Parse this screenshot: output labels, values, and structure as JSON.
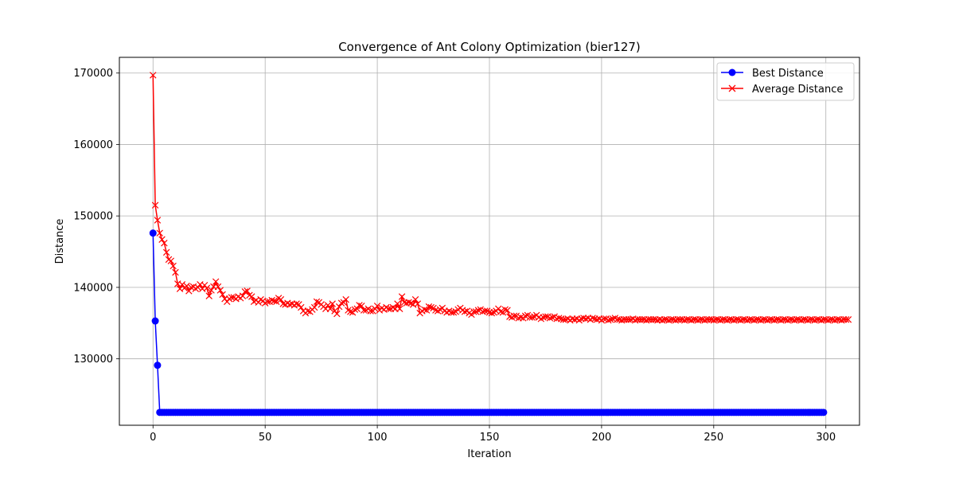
{
  "chart_data": {
    "type": "line",
    "title": "Convergence of Ant Colony Optimization (bier127)",
    "xlabel": "Iteration",
    "ylabel": "Distance",
    "xlim": [
      -15,
      315
    ],
    "ylim": [
      120700,
      172200
    ],
    "xticks": [
      0,
      50,
      100,
      150,
      200,
      250,
      300
    ],
    "yticks": [
      130000,
      140000,
      150000,
      160000,
      170000
    ],
    "grid": true,
    "legend": "top-right",
    "x": "iterations 0..299",
    "series": [
      {
        "name": "Best Distance",
        "color": "#0000ff",
        "marker": "circle",
        "values": [
          147600,
          135300,
          129100,
          122500,
          122500,
          122500,
          122500,
          122500,
          122500,
          122500,
          122500,
          122500,
          122500,
          122500,
          122500,
          122500,
          122500,
          122500,
          122500,
          122500,
          122500,
          122500,
          122500,
          122500,
          122500,
          122500,
          122500,
          122500,
          122500,
          122500,
          122500,
          122500,
          122500,
          122500,
          122500,
          122500,
          122500,
          122500,
          122500,
          122500,
          122500,
          122500,
          122500,
          122500,
          122500,
          122500,
          122500,
          122500,
          122500,
          122500,
          122500,
          122500,
          122500,
          122500,
          122500,
          122500,
          122500,
          122500,
          122500,
          122500,
          122500,
          122500,
          122500,
          122500,
          122500,
          122500,
          122500,
          122500,
          122500,
          122500,
          122500,
          122500,
          122500,
          122500,
          122500,
          122500,
          122500,
          122500,
          122500,
          122500,
          122500,
          122500,
          122500,
          122500,
          122500,
          122500,
          122500,
          122500,
          122500,
          122500,
          122500,
          122500,
          122500,
          122500,
          122500,
          122500,
          122500,
          122500,
          122500,
          122500,
          122500,
          122500,
          122500,
          122500,
          122500,
          122500,
          122500,
          122500,
          122500,
          122500,
          122500,
          122500,
          122500,
          122500,
          122500,
          122500,
          122500,
          122500,
          122500,
          122500,
          122500,
          122500,
          122500,
          122500,
          122500,
          122500,
          122500,
          122500,
          122500,
          122500,
          122500,
          122500,
          122500,
          122500,
          122500,
          122500,
          122500,
          122500,
          122500,
          122500,
          122500,
          122500,
          122500,
          122500,
          122500,
          122500,
          122500,
          122500,
          122500,
          122500,
          122500,
          122500,
          122500,
          122500,
          122500,
          122500,
          122500,
          122500,
          122500,
          122500,
          122500,
          122500,
          122500,
          122500,
          122500,
          122500,
          122500,
          122500,
          122500,
          122500,
          122500,
          122500,
          122500,
          122500,
          122500,
          122500,
          122500,
          122500,
          122500,
          122500,
          122500,
          122500,
          122500,
          122500,
          122500,
          122500,
          122500,
          122500,
          122500,
          122500,
          122500,
          122500,
          122500,
          122500,
          122500,
          122500,
          122500,
          122500,
          122500,
          122500,
          122500,
          122500,
          122500,
          122500,
          122500,
          122500,
          122500,
          122500,
          122500,
          122500,
          122500,
          122500,
          122500,
          122500,
          122500,
          122500,
          122500,
          122500,
          122500,
          122500,
          122500,
          122500,
          122500,
          122500,
          122500,
          122500,
          122500,
          122500,
          122500,
          122500,
          122500,
          122500,
          122500,
          122500,
          122500,
          122500,
          122500,
          122500,
          122500,
          122500,
          122500,
          122500,
          122500,
          122500,
          122500,
          122500,
          122500,
          122500,
          122500,
          122500,
          122500,
          122500,
          122500,
          122500,
          122500,
          122500,
          122500,
          122500,
          122500,
          122500,
          122500,
          122500,
          122500,
          122500,
          122500,
          122500,
          122500,
          122500,
          122500,
          122500,
          122500,
          122500,
          122500,
          122500,
          122500,
          122500,
          122500,
          122500,
          122500,
          122500,
          122500,
          122500,
          122500,
          122500,
          122500,
          122500,
          122500,
          122500,
          122500,
          122500,
          122500,
          122500,
          122500,
          122500,
          122500,
          122500,
          122500,
          122500,
          122500,
          122500
        ]
      },
      {
        "name": "Average Distance",
        "color": "#ff0000",
        "marker": "x",
        "values": [
          169700,
          151500,
          149400,
          147600,
          146700,
          146200,
          144900,
          143900,
          143700,
          143000,
          142100,
          140500,
          139800,
          140400,
          139900,
          140200,
          139500,
          140000,
          140100,
          139800,
          140000,
          140400,
          139800,
          140300,
          139900,
          138800,
          139600,
          140100,
          140800,
          140100,
          139600,
          139000,
          138400,
          138000,
          138400,
          138600,
          138600,
          138400,
          138700,
          138500,
          138800,
          139400,
          139500,
          138900,
          138700,
          138000,
          138200,
          137900,
          138300,
          138100,
          137800,
          138000,
          138000,
          138200,
          138100,
          138000,
          138500,
          138300,
          137700,
          137600,
          137800,
          137600,
          137700,
          137500,
          137700,
          137600,
          137200,
          136700,
          136400,
          136700,
          136600,
          136900,
          137200,
          138000,
          137900,
          137600,
          137300,
          137000,
          137500,
          137000,
          137700,
          136700,
          136300,
          137300,
          137800,
          137900,
          138300,
          136800,
          136600,
          136500,
          136900,
          137000,
          137500,
          137400,
          136800,
          136800,
          137000,
          136700,
          136700,
          137000,
          137400,
          136800,
          137100,
          136900,
          137200,
          137000,
          137000,
          137200,
          137000,
          137700,
          137000,
          138700,
          137900,
          137800,
          137900,
          137800,
          137600,
          138300,
          137700,
          136400,
          136700,
          136900,
          136800,
          137300,
          137200,
          137100,
          136800,
          136700,
          136900,
          137100,
          136700,
          136500,
          136700,
          136500,
          136500,
          136600,
          136900,
          137100,
          136800,
          136600,
          136700,
          136400,
          136200,
          136600,
          136600,
          136800,
          136900,
          136600,
          136700,
          136700,
          136500,
          136400,
          136500,
          136700,
          137000,
          136600,
          136500,
          136900,
          136800,
          135900,
          135800,
          136000,
          136000,
          135700,
          135800,
          135700,
          136000,
          136100,
          135800,
          135800,
          135900,
          136100,
          135800,
          135600,
          135800,
          135900,
          135900,
          135700,
          135800,
          135900,
          135600,
          135700,
          135600,
          135500,
          135500,
          135600,
          135400,
          135600,
          135500,
          135600,
          135400,
          135600,
          135700,
          135600,
          135700,
          135500,
          135700,
          135600,
          135500,
          135600,
          135400,
          135600,
          135600,
          135400,
          135500,
          135600,
          135700,
          135500,
          135500,
          135400,
          135500,
          135500,
          135500,
          135500,
          135600,
          135400,
          135500,
          135500,
          135500,
          135500,
          135400,
          135500,
          135500,
          135500,
          135500,
          135400,
          135500,
          135400,
          135500,
          135500,
          135400,
          135500,
          135500,
          135400,
          135500,
          135500,
          135500,
          135400,
          135500,
          135500,
          135400,
          135500,
          135500,
          135400,
          135500,
          135500,
          135400,
          135500,
          135500,
          135500,
          135400,
          135500,
          135500,
          135400,
          135500,
          135500,
          135400,
          135500,
          135500,
          135400,
          135500,
          135500,
          135400,
          135500,
          135500,
          135400,
          135500,
          135500,
          135400,
          135500,
          135500,
          135400,
          135500,
          135500,
          135400,
          135500,
          135500,
          135400,
          135500,
          135500,
          135400,
          135500,
          135500,
          135400,
          135500,
          135500,
          135400,
          135500,
          135500,
          135400,
          135500,
          135500,
          135400,
          135500,
          135500,
          135400,
          135500,
          135500,
          135400,
          135500,
          135500,
          135400,
          135500,
          135500,
          135400,
          135500,
          135500,
          135400,
          135500,
          135500,
          135500
        ]
      }
    ]
  }
}
